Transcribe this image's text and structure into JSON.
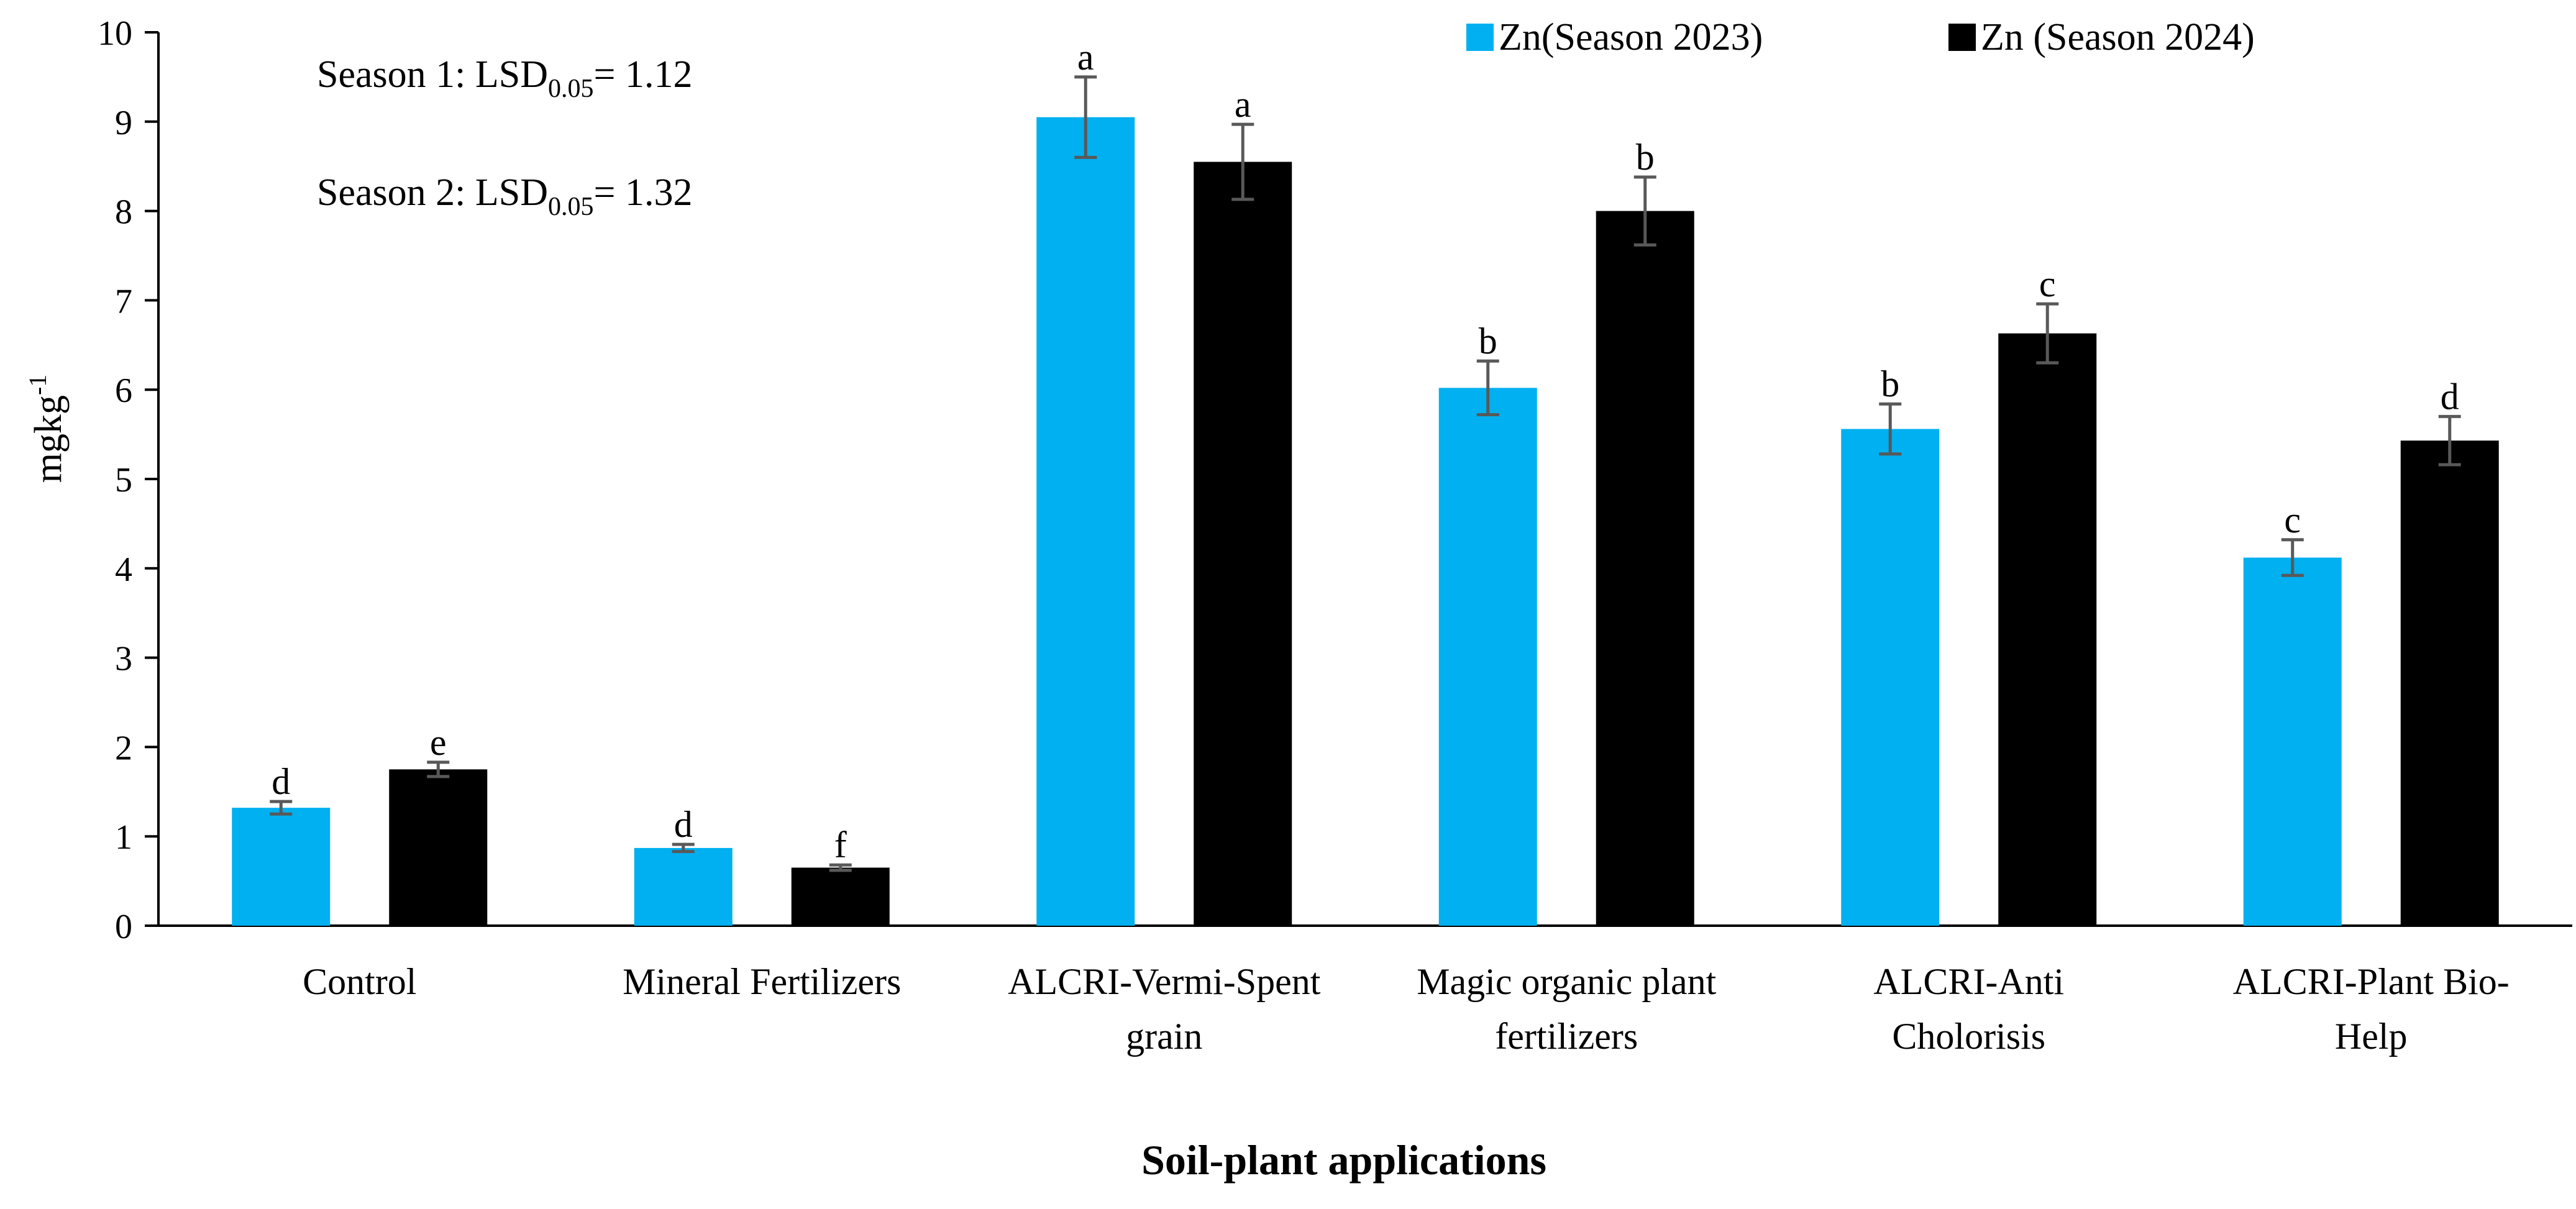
{
  "chart_data": {
    "type": "bar",
    "title": "",
    "xlabel": "Soil-plant applications",
    "ylabel": "mgkg",
    "ylabel_superscript": "-1",
    "ylim": [
      0,
      10
    ],
    "yticks": [
      0,
      1,
      2,
      3,
      4,
      5,
      6,
      7,
      8,
      9,
      10
    ],
    "grid": false,
    "legend_position": "top-right",
    "categories": [
      [
        "Control"
      ],
      [
        "Mineral Fertilizers"
      ],
      [
        "ALCRI-Vermi-Spent",
        "grain"
      ],
      [
        "Magic organic plant",
        "fertilizers"
      ],
      [
        "ALCRI-Anti",
        "Cholorisis"
      ],
      [
        "ALCRI-Plant Bio-",
        "Help"
      ]
    ],
    "series": [
      {
        "name": "Zn(Season 2023)",
        "color": "#00B0F0",
        "values": [
          1.32,
          0.87,
          9.05,
          6.02,
          5.56,
          4.12
        ],
        "errors": [
          0.07,
          0.04,
          0.45,
          0.3,
          0.28,
          0.2
        ],
        "letters": [
          "d",
          "d",
          "a",
          "b",
          "b",
          "c"
        ]
      },
      {
        "name": "Zn (Season 2024)",
        "color": "#000000",
        "values": [
          1.75,
          0.65,
          8.55,
          8.0,
          6.63,
          5.43
        ],
        "errors": [
          0.08,
          0.03,
          0.42,
          0.38,
          0.33,
          0.27
        ],
        "letters": [
          "e",
          "f",
          "a",
          "b",
          "c",
          "d"
        ]
      }
    ],
    "annotations": [
      {
        "prefix": "Season 1: LSD",
        "subscript": "0.05",
        "suffix": "= 1.12"
      },
      {
        "prefix": "Season 2: LSD",
        "subscript": "0.05",
        "suffix": "= 1.32"
      }
    ]
  }
}
